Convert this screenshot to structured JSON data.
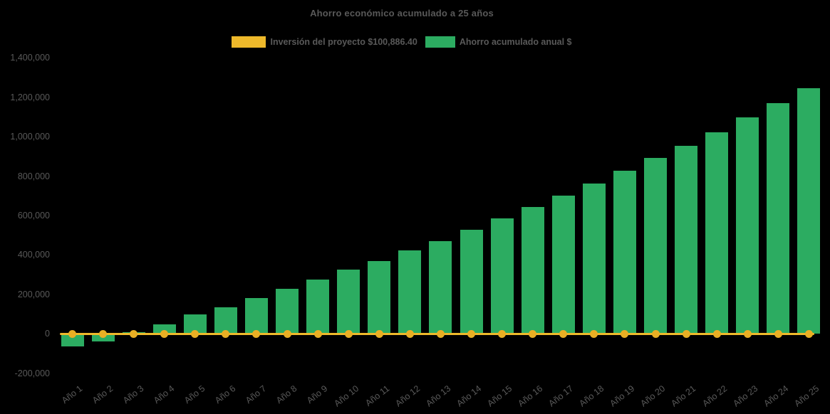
{
  "colors": {
    "background": "#000000",
    "text": "#595959",
    "bar": "#2CAC61",
    "line": "#EEB92B",
    "marker": "#E9AF24"
  },
  "y_axis": {
    "tick_labels": [
      "1,400,000",
      "1,200,000",
      "1,000,000",
      "800,000",
      "600,000",
      "400,000",
      "200,000",
      "0",
      "-200,000"
    ]
  },
  "chart_data": {
    "type": "bar",
    "title": "Ahorro económico acumulado a 25 años",
    "categories": [
      "Año 1",
      "Año 2",
      "Año 3",
      "Año 4",
      "Año 5",
      "Año 6",
      "Año 7",
      "Año 8",
      "Año 9",
      "Año 10",
      "Año 11",
      "Año 12",
      "Año 13",
      "Año 14",
      "Año 15",
      "Año 16",
      "Año 17",
      "Año 18",
      "Año 19",
      "Año 20",
      "Año 21",
      "Año 22",
      "Año 23",
      "Año 24",
      "Año 25"
    ],
    "series": [
      {
        "name": "Inversión del proyecto $100,886.40",
        "type": "line",
        "color": "#EEB92B",
        "marker": "circle",
        "marker_color": "#E9AF24",
        "investment_value_label": "$100,886.40",
        "values": [
          0,
          0,
          0,
          0,
          0,
          0,
          0,
          0,
          0,
          0,
          0,
          0,
          0,
          0,
          0,
          0,
          0,
          0,
          0,
          0,
          0,
          0,
          0,
          0,
          0
        ]
      },
      {
        "name": "Ahorro acumulado anual $",
        "type": "bar",
        "color": "#2CAC61",
        "values": [
          -65000,
          -37000,
          10000,
          48000,
          97000,
          136000,
          181000,
          230000,
          274000,
          325000,
          368000,
          424000,
          471000,
          527000,
          587000,
          644000,
          700000,
          761000,
          827000,
          892000,
          954000,
          1022000,
          1097000,
          1170000,
          1245000
        ]
      }
    ],
    "ylim": [
      -200000,
      1400000
    ],
    "ytick_step": 200000,
    "xlabel": "",
    "ylabel": "",
    "legend_position": "top",
    "grid": false,
    "x_tick_rotation": -38
  }
}
